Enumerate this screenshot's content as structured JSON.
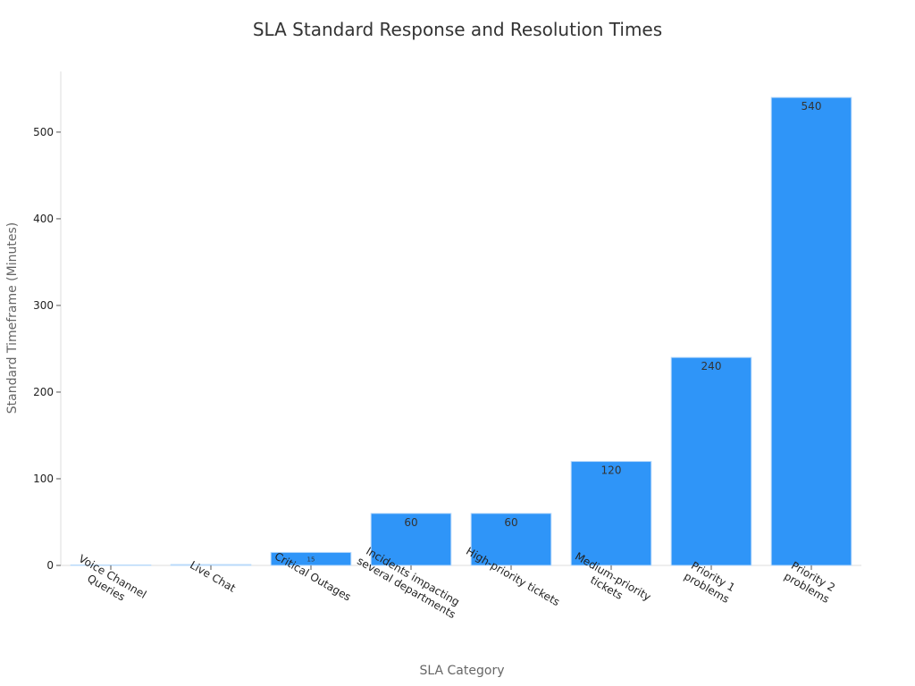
{
  "chart_data": {
    "type": "bar",
    "title": "SLA Standard Response and Resolution Times",
    "xlabel": "SLA Category",
    "ylabel": "Standard Timeframe (Minutes)",
    "ylim": [
      0,
      570
    ],
    "yticks": [
      0,
      100,
      200,
      300,
      400,
      500
    ],
    "grid": false,
    "bar_color": "#2f95f8",
    "bar_edge_color": "#b8d9fa",
    "categories": [
      [
        "Voice Channel",
        "Queries"
      ],
      [
        "Live Chat"
      ],
      [
        "Critical Outages"
      ],
      [
        "Incidents impacting",
        "several departments"
      ],
      [
        "High-priority tickets"
      ],
      [
        "Medium-priority",
        "tickets"
      ],
      [
        "Priority 1",
        "problems"
      ],
      [
        "Priority 2",
        "problems"
      ]
    ],
    "values": [
      0.33,
      1,
      15,
      60,
      60,
      120,
      240,
      540
    ],
    "data_labels": [
      "",
      "",
      "15",
      "60",
      "60",
      "120",
      "240",
      "540"
    ]
  }
}
